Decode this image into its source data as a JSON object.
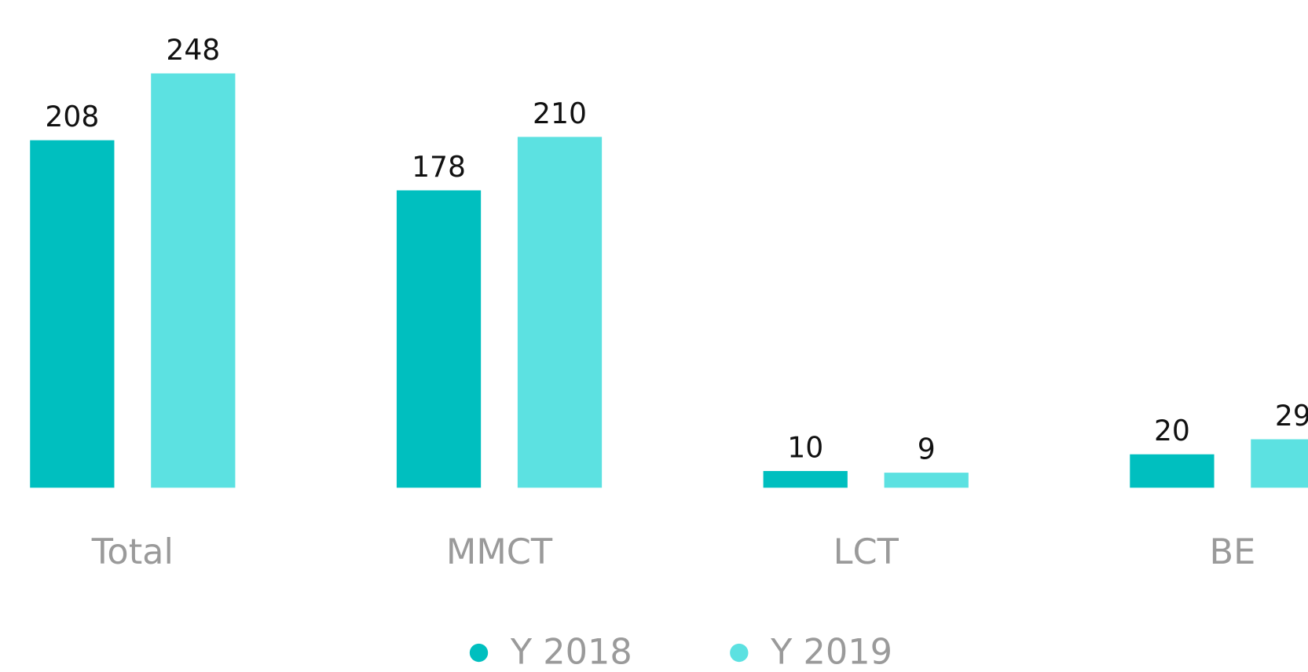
{
  "chart_data": {
    "type": "bar",
    "categories": [
      "Total",
      "MMCT",
      "LCT",
      "BE"
    ],
    "series": [
      {
        "name": "Y 2018",
        "color": "#00bfbf",
        "values": [
          208,
          178,
          10,
          20
        ]
      },
      {
        "name": "Y 2019",
        "color": "#5ce1e1",
        "values": [
          248,
          210,
          9,
          29
        ]
      }
    ],
    "legend": "bottom"
  }
}
